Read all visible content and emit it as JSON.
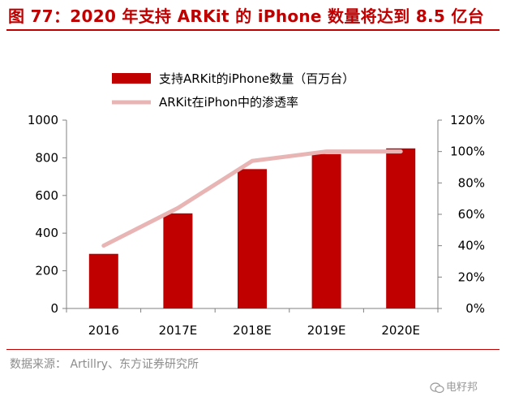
{
  "header": {
    "title": "图 77：2020 年支持 ARKit 的 iPhone 数量将达到 8.5 亿台"
  },
  "footer": {
    "source": "数据来源：  Artillry、东方证券研究所",
    "watermark": "电籽邦"
  },
  "colors": {
    "bar": "#c00000",
    "line": "#e8b4b4",
    "title": "#c00000",
    "axis": "#808080"
  },
  "chart_data": {
    "type": "bar",
    "categories": [
      "2016",
      "2017E",
      "2018E",
      "2019E",
      "2020E"
    ],
    "series": [
      {
        "name": "支持ARKit的iPhone数量（百万台）",
        "type": "bar",
        "axis": "left",
        "values": [
          290,
          505,
          740,
          820,
          850
        ]
      },
      {
        "name": "ARKit在iPhon中的渗透率",
        "type": "line",
        "axis": "right",
        "values": [
          0.4,
          0.64,
          0.94,
          1.0,
          1.0
        ]
      }
    ],
    "y_left": {
      "min": 0,
      "max": 1000,
      "step": 200,
      "ticks": [
        "0",
        "200",
        "400",
        "600",
        "800",
        "1000"
      ]
    },
    "y_right": {
      "min": 0,
      "max": 1.2,
      "step": 0.2,
      "ticks": [
        "0%",
        "20%",
        "40%",
        "60%",
        "80%",
        "100%",
        "120%"
      ]
    },
    "legend_position": "top-center",
    "grid": false
  }
}
